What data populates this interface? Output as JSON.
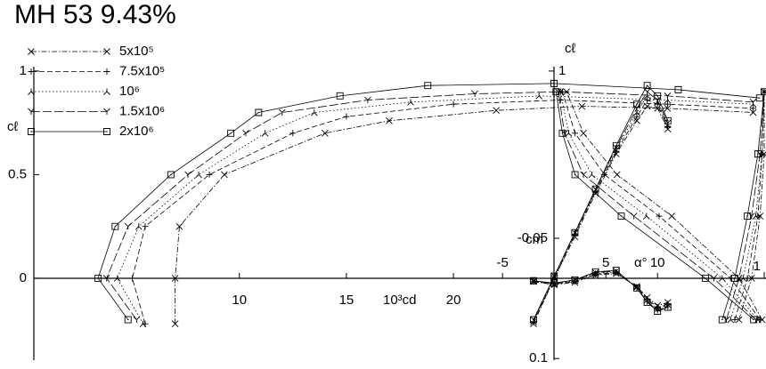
{
  "chart_data": [
    {
      "type": "line",
      "title": "MH 53 9.43%",
      "x_label": "10³cd",
      "y_label": "cℓ",
      "xlim": [
        0.4,
        34.6
      ],
      "ylim": [
        -0.395,
        1.021
      ],
      "xticks": [
        10,
        15,
        20
      ],
      "yticks": [
        0,
        0.5,
        1
      ],
      "series": [
        {
          "name": "5x10⁵",
          "color": "#000000",
          "marker": "x",
          "line_style": "dashdot",
          "x": [
            7.0,
            7.0,
            7.2,
            9.3,
            14,
            17,
            22,
            26,
            30,
            34
          ],
          "values": [
            -0.22,
            0,
            0.25,
            0.5,
            0.7,
            0.76,
            0.81,
            0.83,
            0.82,
            0.8
          ]
        },
        {
          "name": "7.5x10⁵",
          "color": "#000000",
          "marker": "plus",
          "line_style": "dashed",
          "x": [
            5.6,
            5.0,
            5.6,
            8.6,
            12.5,
            15,
            20,
            25,
            30,
            34
          ],
          "values": [
            -0.22,
            0,
            0.25,
            0.5,
            0.7,
            0.78,
            0.84,
            0.86,
            0.84,
            0.82
          ]
        },
        {
          "name": "10⁶",
          "color": "#000000",
          "marker": "invy",
          "line_style": "dotted",
          "x": [
            5.5,
            4.3,
            5.3,
            8.1,
            11.2,
            13.5,
            18,
            24,
            30,
            34
          ],
          "values": [
            -0.22,
            0,
            0.25,
            0.5,
            0.7,
            0.8,
            0.85,
            0.88,
            0.86,
            0.84
          ]
        },
        {
          "name": "1.5x10⁶",
          "color": "#000000",
          "marker": "y",
          "line_style": "longdash",
          "x": [
            5.2,
            3.8,
            4.8,
            7.6,
            10.3,
            12,
            16,
            21,
            25,
            30,
            34
          ],
          "values": [
            -0.2,
            0,
            0.25,
            0.5,
            0.7,
            0.8,
            0.86,
            0.89,
            0.9,
            0.88,
            0.85
          ]
        },
        {
          "name": "2x10⁶",
          "color": "#000000",
          "marker": "box",
          "line_style": "solid",
          "x": [
            4.8,
            3.4,
            4.2,
            6.8,
            9.6,
            10.9,
            14.7,
            18.8,
            24.7,
            30.5,
            34.3
          ],
          "values": [
            -0.2,
            0,
            0.25,
            0.5,
            0.7,
            0.8,
            0.88,
            0.93,
            0.94,
            0.91,
            0.87
          ]
        }
      ]
    },
    {
      "type": "line",
      "x_label": "α°",
      "y_label": "cℓ",
      "xlim": [
        -7,
        20.5
      ],
      "ylim": [
        -0.395,
        1.021
      ],
      "xticks": [
        -5,
        5,
        10
      ],
      "yticks": [
        1
      ],
      "series": [
        {
          "name": "5x10⁵",
          "color": "#000000",
          "marker": "x",
          "line_style": "dashdot",
          "x": [
            -2,
            0,
            2,
            4,
            6,
            8,
            9,
            10,
            11
          ],
          "values": [
            -0.22,
            0,
            0.2,
            0.41,
            0.6,
            0.76,
            0.83,
            0.82,
            0.72
          ]
        },
        {
          "name": "7.5x10⁵",
          "color": "#000000",
          "marker": "plus",
          "line_style": "dashed",
          "x": [
            -2,
            0,
            2,
            4,
            6,
            8,
            9,
            10,
            11
          ],
          "values": [
            -0.21,
            0,
            0.21,
            0.42,
            0.61,
            0.78,
            0.86,
            0.84,
            0.73
          ]
        },
        {
          "name": "10⁶",
          "color": "#000000",
          "marker": "invy",
          "line_style": "dotted",
          "x": [
            -2,
            0,
            2,
            4,
            6,
            8,
            9,
            10,
            11
          ],
          "values": [
            -0.21,
            0.01,
            0.22,
            0.42,
            0.62,
            0.8,
            0.88,
            0.85,
            0.74
          ]
        },
        {
          "name": "1.5x10⁶",
          "color": "#000000",
          "marker": "y",
          "line_style": "longdash",
          "x": [
            -2,
            0,
            2,
            4,
            6,
            8,
            9,
            10,
            11
          ],
          "values": [
            -0.2,
            0.01,
            0.22,
            0.43,
            0.63,
            0.82,
            0.9,
            0.86,
            0.75
          ]
        },
        {
          "name": "2x10⁶",
          "color": "#000000",
          "marker": "box",
          "line_style": "solid",
          "x": [
            -2,
            0,
            2,
            4,
            6,
            8,
            9,
            10,
            11
          ],
          "values": [
            -0.2,
            0.01,
            0.22,
            0.43,
            0.64,
            0.84,
            0.93,
            0.88,
            0.76
          ]
        }
      ]
    },
    {
      "type": "line",
      "y_label": "cm",
      "xlim": [
        -7,
        20.5
      ],
      "ylim": [
        0.102,
        -0.264
      ],
      "yticks": [
        -0.05,
        0.1
      ],
      "series": [
        {
          "name": "5x10⁵",
          "color": "#000000",
          "marker": "x",
          "line_style": "dashdot",
          "x": [
            -2,
            0,
            2,
            4,
            6,
            8,
            9,
            10,
            11
          ],
          "values": [
            0.004,
            0.008,
            0.005,
            -0.004,
            -0.006,
            0.01,
            0.024,
            0.034,
            0.03
          ]
        },
        {
          "name": "7.5x10⁵",
          "color": "#000000",
          "marker": "plus",
          "line_style": "dashed",
          "x": [
            -2,
            0,
            2,
            4,
            6,
            8,
            9,
            10,
            11
          ],
          "values": [
            0.004,
            0.007,
            0.004,
            -0.005,
            -0.007,
            0.011,
            0.026,
            0.036,
            0.032
          ]
        },
        {
          "name": "10⁶",
          "color": "#000000",
          "marker": "invy",
          "line_style": "dotted",
          "x": [
            -2,
            0,
            2,
            4,
            6,
            8,
            9,
            10,
            11
          ],
          "values": [
            0.003,
            0.007,
            0.003,
            -0.006,
            -0.008,
            0.011,
            0.027,
            0.038,
            0.033
          ]
        },
        {
          "name": "1.5x10⁶",
          "color": "#000000",
          "marker": "y",
          "line_style": "longdash",
          "x": [
            -2,
            0,
            2,
            4,
            6,
            8,
            9,
            10,
            11
          ],
          "values": [
            0.003,
            0.006,
            0.002,
            -0.007,
            -0.009,
            0.012,
            0.029,
            0.04,
            0.035
          ]
        },
        {
          "name": "2x10⁶",
          "color": "#000000",
          "marker": "box",
          "line_style": "solid",
          "x": [
            -2,
            0,
            2,
            4,
            6,
            8,
            9,
            10,
            11
          ],
          "values": [
            0.003,
            0.006,
            0.002,
            -0.008,
            -0.01,
            0.012,
            0.03,
            0.041,
            0.036
          ]
        }
      ]
    },
    {
      "type": "line",
      "xlim": [
        0,
        1
      ],
      "ylim": [
        -0.395,
        1.021
      ],
      "xticks": [
        1
      ],
      "series": [
        {
          "name": "5x10⁵",
          "color": "#000000",
          "marker": "x",
          "line_style": "dashdot",
          "x": [
            0.99,
            0.88,
            0.56,
            0.3,
            0.14,
            0.06
          ],
          "values": [
            -0.2,
            0,
            0.3,
            0.5,
            0.7,
            0.9
          ]
        },
        {
          "name": "7.5x10⁵",
          "color": "#000000",
          "marker": "plus",
          "line_style": "dashed",
          "x": [
            0.98,
            0.84,
            0.5,
            0.24,
            0.1,
            0.04
          ],
          "values": [
            -0.2,
            0,
            0.3,
            0.5,
            0.7,
            0.9
          ]
        },
        {
          "name": "10⁶",
          "color": "#000000",
          "marker": "invy",
          "line_style": "dotted",
          "x": [
            0.97,
            0.8,
            0.44,
            0.18,
            0.07,
            0.03
          ],
          "values": [
            -0.2,
            0,
            0.3,
            0.5,
            0.7,
            0.9
          ]
        },
        {
          "name": "1.5x10⁶",
          "color": "#000000",
          "marker": "y",
          "line_style": "longdash",
          "x": [
            0.96,
            0.76,
            0.38,
            0.14,
            0.05,
            0.02
          ],
          "values": [
            -0.2,
            0,
            0.3,
            0.5,
            0.7,
            0.9
          ]
        },
        {
          "name": "2x10⁶",
          "color": "#000000",
          "marker": "box",
          "line_style": "solid",
          "x": [
            0.95,
            0.72,
            0.32,
            0.1,
            0.04,
            0.01
          ],
          "values": [
            -0.2,
            0,
            0.3,
            0.5,
            0.7,
            0.9
          ]
        },
        {
          "name": "5x10⁵",
          "color": "#000000",
          "marker": "x",
          "line_style": "dashdot",
          "x": [
            0.88,
            0.94,
            0.98,
            1.0,
            1.0
          ],
          "values": [
            -0.2,
            0,
            0.3,
            0.6,
            0.9
          ]
        },
        {
          "name": "7.5x10⁵",
          "color": "#000000",
          "marker": "plus",
          "line_style": "dashed",
          "x": [
            0.86,
            0.92,
            0.97,
            0.99,
            1.0
          ],
          "values": [
            -0.2,
            0,
            0.3,
            0.6,
            0.9
          ]
        },
        {
          "name": "10⁶",
          "color": "#000000",
          "marker": "invy",
          "line_style": "dotted",
          "x": [
            0.84,
            0.9,
            0.96,
            0.99,
            1.0
          ],
          "values": [
            -0.2,
            0,
            0.3,
            0.6,
            0.9
          ]
        },
        {
          "name": "1.5x10⁶",
          "color": "#000000",
          "marker": "y",
          "line_style": "longdash",
          "x": [
            0.82,
            0.88,
            0.94,
            0.98,
            1.0
          ],
          "values": [
            -0.2,
            0,
            0.3,
            0.6,
            0.9
          ]
        },
        {
          "name": "2x10⁶",
          "color": "#000000",
          "marker": "box",
          "line_style": "solid",
          "x": [
            0.8,
            0.86,
            0.92,
            0.97,
            1.0
          ],
          "values": [
            -0.2,
            0,
            0.3,
            0.6,
            0.9
          ]
        }
      ]
    }
  ]
}
